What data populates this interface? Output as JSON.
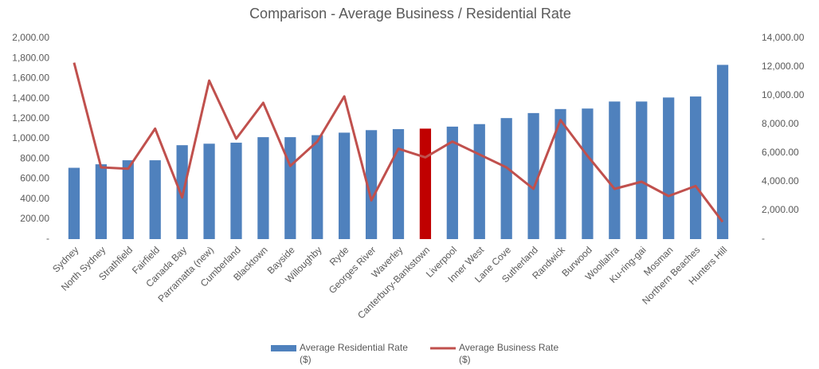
{
  "chart_data": {
    "type": "bar-line",
    "title": "Comparison - Average Business / Residential Rate",
    "categories": [
      "Sydney",
      "North Sydney",
      "Strathfield",
      "Fairfield",
      "Canada Bay",
      "Parramatta (new)",
      "Cumberland",
      "Blacktown",
      "Bayside",
      "Willoughby",
      "Ryde",
      "Georges River",
      "Waverley",
      "Canterbury-Bankstown",
      "Liverpool",
      "Inner West",
      "Lane Cove",
      "Sutherland",
      "Randwick",
      "Burwood",
      "Woollahra",
      "Ku-ring-gai",
      "Mosman",
      "Northern Beaches",
      "Hunters Hill"
    ],
    "series": [
      {
        "name": "Average Residential Rate ($)",
        "type": "bar",
        "color": "#4f81bd",
        "colors": [
          "#4f81bd",
          "#4f81bd",
          "#4f81bd",
          "#4f81bd",
          "#4f81bd",
          "#4f81bd",
          "#4f81bd",
          "#4f81bd",
          "#4f81bd",
          "#4f81bd",
          "#4f81bd",
          "#4f81bd",
          "#4f81bd",
          "#c00000",
          "#4f81bd",
          "#4f81bd",
          "#4f81bd",
          "#4f81bd",
          "#4f81bd",
          "#4f81bd",
          "#4f81bd",
          "#4f81bd",
          "#4f81bd",
          "#4f81bd",
          "#4f81bd"
        ],
        "values": [
          710,
          745,
          785,
          785,
          935,
          950,
          960,
          1015,
          1015,
          1035,
          1060,
          1085,
          1095,
          1100,
          1120,
          1145,
          1205,
          1255,
          1295,
          1300,
          1370,
          1370,
          1410,
          1420,
          1735
        ]
      },
      {
        "name": "Average Business Rate ($)",
        "type": "line",
        "axis": "y2",
        "color": "#c0504d",
        "values": [
          12300,
          5000,
          4900,
          7700,
          2900,
          11050,
          7000,
          9500,
          5100,
          6800,
          9950,
          2700,
          6300,
          5700,
          6800,
          5900,
          5000,
          3500,
          8300,
          5800,
          3500,
          4000,
          3000,
          3700,
          1200
        ]
      }
    ],
    "ylim": [
      0,
      2000
    ],
    "yticks": [
      {
        "value": 0,
        "label": "-"
      },
      {
        "value": 200,
        "label": "200.00"
      },
      {
        "value": 400,
        "label": "400.00"
      },
      {
        "value": 600,
        "label": "600.00"
      },
      {
        "value": 800,
        "label": "800.00"
      },
      {
        "value": 1000,
        "label": "1,000.00"
      },
      {
        "value": 1200,
        "label": "1,200.00"
      },
      {
        "value": 1400,
        "label": "1,400.00"
      },
      {
        "value": 1600,
        "label": "1,600.00"
      },
      {
        "value": 1800,
        "label": "1,800.00"
      },
      {
        "value": 2000,
        "label": "2,000.00"
      }
    ],
    "y2lim": [
      0,
      14000
    ],
    "y2ticks": [
      {
        "value": 0,
        "label": "-"
      },
      {
        "value": 2000,
        "label": "2,000.00"
      },
      {
        "value": 4000,
        "label": "4,000.00"
      },
      {
        "value": 6000,
        "label": "6,000.00"
      },
      {
        "value": 8000,
        "label": "8,000.00"
      },
      {
        "value": 10000,
        "label": "10,000.00"
      },
      {
        "value": 12000,
        "label": "12,000.00"
      },
      {
        "value": 14000,
        "label": "14,000.00"
      }
    ],
    "grid": false,
    "legend": "bottom"
  }
}
